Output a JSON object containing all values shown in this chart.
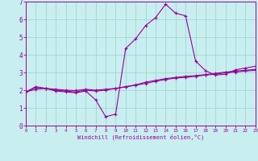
{
  "xlabel": "Windchill (Refroidissement éolien,°C)",
  "bg_color": "#c8eef0",
  "grid_color": "#a0d8d0",
  "line_color": "#990099",
  "xlim": [
    0,
    23
  ],
  "ylim": [
    0,
    7
  ],
  "xticks": [
    0,
    1,
    2,
    3,
    4,
    5,
    6,
    7,
    8,
    9,
    10,
    11,
    12,
    13,
    14,
    15,
    16,
    17,
    18,
    19,
    20,
    21,
    22,
    23
  ],
  "yticks": [
    0,
    1,
    2,
    3,
    4,
    5,
    6,
    7
  ],
  "curve1_x": [
    0,
    1,
    2,
    3,
    4,
    5,
    6,
    7,
    8,
    9,
    10,
    11,
    12,
    13,
    14,
    15,
    16,
    17,
    18,
    19,
    20,
    21,
    22,
    23
  ],
  "curve1_y": [
    1.9,
    2.2,
    2.1,
    1.95,
    1.9,
    1.85,
    1.95,
    1.45,
    0.5,
    0.65,
    4.35,
    4.9,
    5.65,
    6.1,
    6.85,
    6.35,
    6.2,
    3.65,
    3.1,
    2.85,
    2.9,
    3.15,
    3.25,
    3.35
  ],
  "curve2_x": [
    0,
    1,
    2,
    3,
    4,
    5,
    6,
    7,
    8,
    9,
    10,
    11,
    12,
    13,
    14,
    15,
    16,
    17,
    18,
    19,
    20,
    21,
    22,
    23
  ],
  "curve2_y": [
    1.9,
    2.05,
    2.1,
    2.05,
    2.0,
    1.98,
    2.05,
    2.0,
    2.05,
    2.1,
    2.2,
    2.3,
    2.45,
    2.55,
    2.65,
    2.72,
    2.78,
    2.82,
    2.88,
    2.95,
    3.02,
    3.08,
    3.12,
    3.18
  ],
  "curve3_x": [
    0,
    1,
    2,
    3,
    4,
    5,
    6,
    7,
    8,
    9,
    10,
    11,
    12,
    13,
    14,
    15,
    16,
    17,
    18,
    19,
    20,
    21,
    22,
    23
  ],
  "curve3_y": [
    1.9,
    2.15,
    2.1,
    2.0,
    1.95,
    1.9,
    2.0,
    1.95,
    2.0,
    2.1,
    2.18,
    2.28,
    2.38,
    2.5,
    2.6,
    2.68,
    2.72,
    2.78,
    2.85,
    2.9,
    2.98,
    3.02,
    3.08,
    3.12
  ]
}
